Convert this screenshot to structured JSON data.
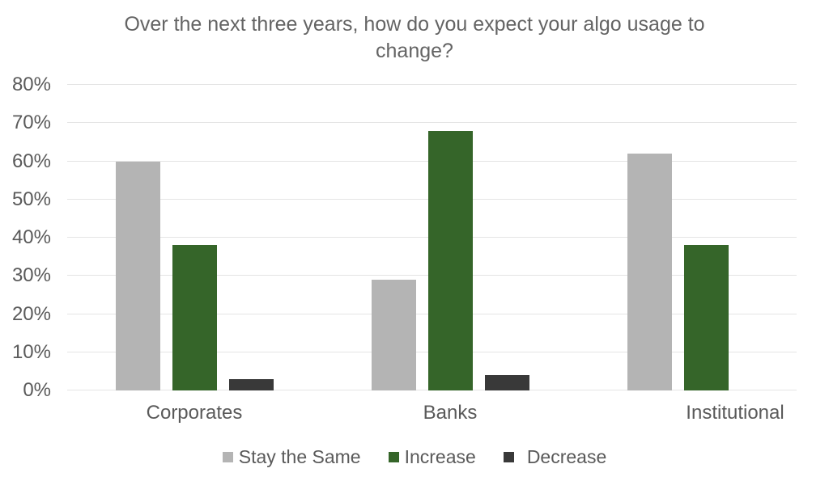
{
  "chart_data": {
    "type": "bar",
    "title": "Over the next three years, how do you expect your algo usage to change?",
    "categories": [
      "Corporates",
      "Banks",
      "Institutional"
    ],
    "series": [
      {
        "name": "Stay the Same",
        "color": "#b4b4b4",
        "values": [
          60,
          29,
          62
        ]
      },
      {
        "name": "Increase",
        "color": "#356529",
        "values": [
          38,
          68,
          38
        ]
      },
      {
        "name": "Decrease",
        "color": "#393939",
        "values": [
          3,
          4,
          0
        ]
      }
    ],
    "y_axis": {
      "min": 0,
      "max": 80,
      "step": 10,
      "unit": "%",
      "ticks": [
        "0%",
        "10%",
        "20%",
        "30%",
        "40%",
        "50%",
        "60%",
        "70%",
        "80%"
      ]
    },
    "ylim": [
      0,
      80
    ],
    "grid": true,
    "legend_position": "bottom"
  },
  "colors": {
    "background": "#ffffff",
    "title_text": "#646464",
    "axis_text": "#5a5a5a",
    "gridline": "#e4e4e4"
  }
}
